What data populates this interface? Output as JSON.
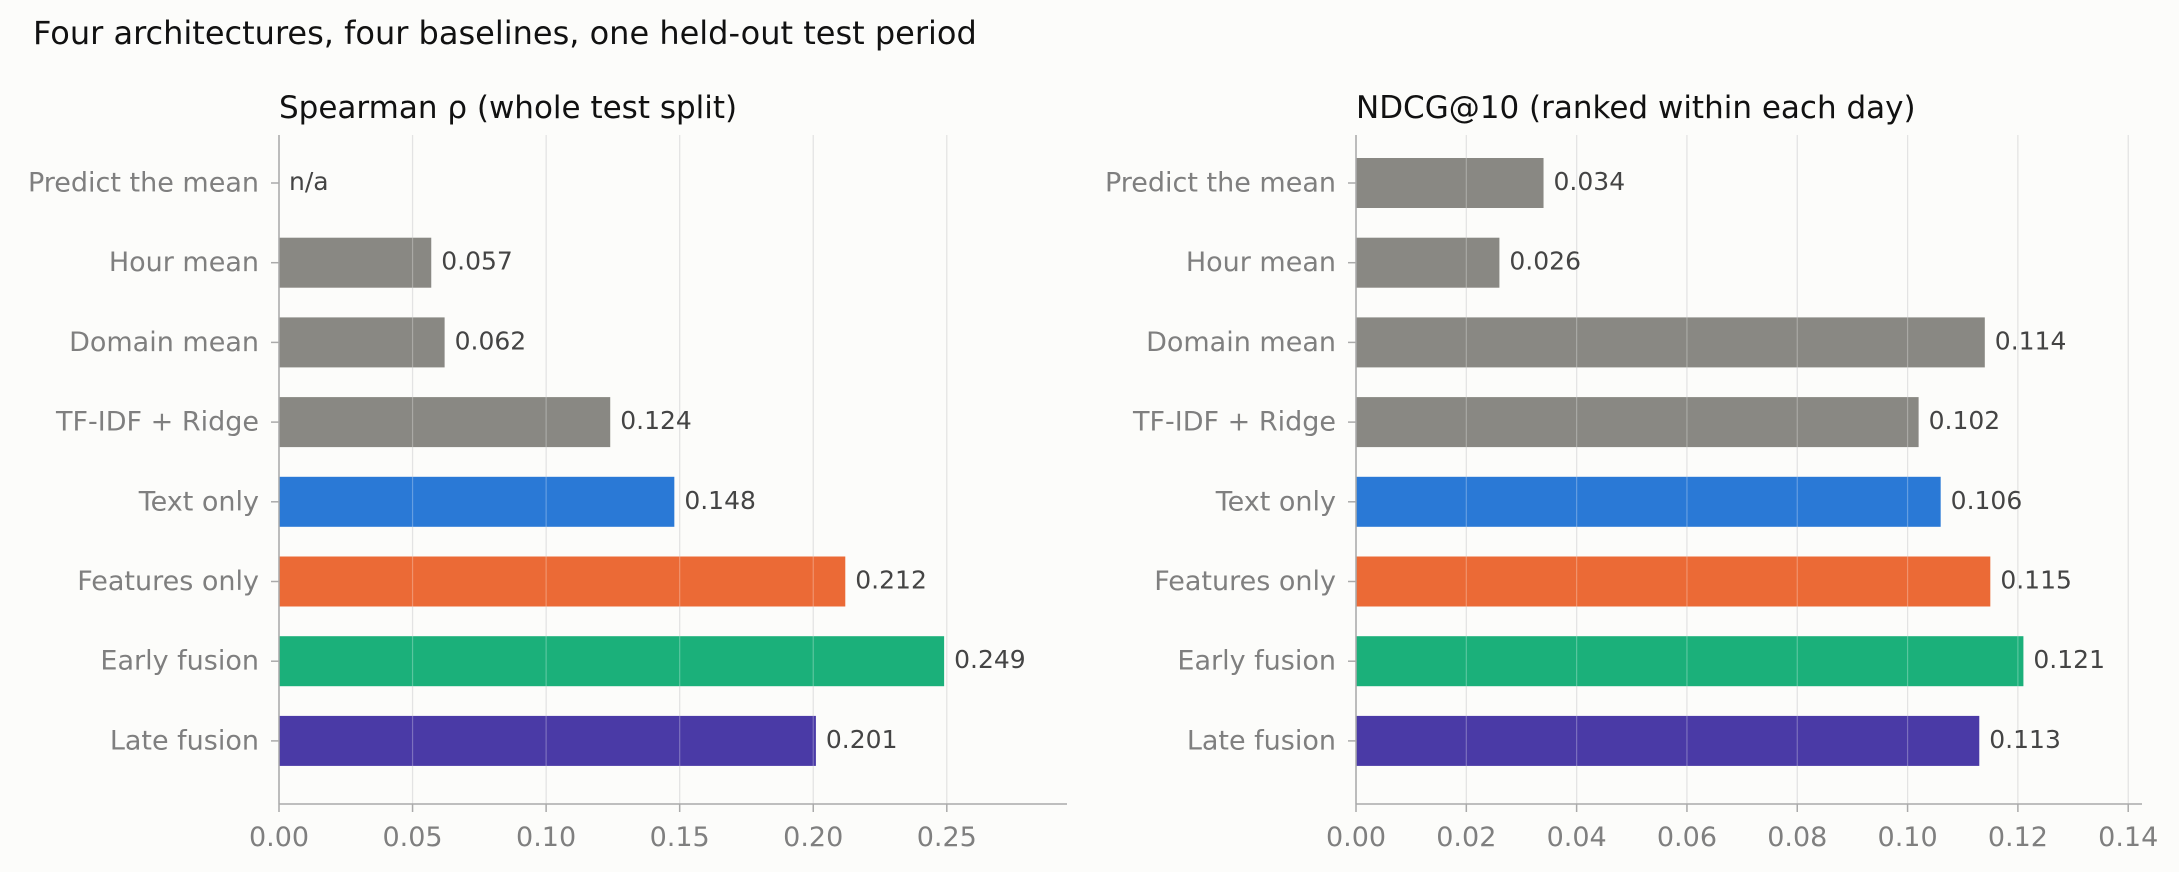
{
  "figure": {
    "title": "Four architectures, four baselines, one held-out test period"
  },
  "colors": {
    "baseline": "#898883",
    "text_only": "#2a79d6",
    "features_only": "#eb6a36",
    "early_fusion": "#1bb07a",
    "late_fusion": "#4a3aa6"
  },
  "chart_data": [
    {
      "type": "bar",
      "orientation": "horizontal",
      "title": "Spearman ρ (whole test split)",
      "xlabel": "",
      "ylabel": "",
      "categories": [
        "Predict the mean",
        "Hour mean",
        "Domain mean",
        "TF-IDF + Ridge",
        "Text only",
        "Features only",
        "Early fusion",
        "Late fusion"
      ],
      "values": [
        null,
        0.057,
        0.062,
        0.124,
        0.148,
        0.212,
        0.249,
        0.201
      ],
      "value_labels": [
        "n/a",
        "0.057",
        "0.062",
        "0.124",
        "0.148",
        "0.212",
        "0.249",
        "0.201"
      ],
      "bar_colors": [
        "#898883",
        "#898883",
        "#898883",
        "#898883",
        "#2a79d6",
        "#eb6a36",
        "#1bb07a",
        "#4a3aa6"
      ],
      "xlim": [
        0,
        0.295
      ],
      "xticks": [
        0,
        0.05,
        0.1,
        0.15,
        0.2,
        0.25
      ],
      "xtick_labels": [
        "0.00",
        "0.05",
        "0.10",
        "0.15",
        "0.20",
        "0.25"
      ],
      "grid": "x"
    },
    {
      "type": "bar",
      "orientation": "horizontal",
      "title": "NDCG@10 (ranked within each day)",
      "xlabel": "",
      "ylabel": "",
      "categories": [
        "Predict the mean",
        "Hour mean",
        "Domain mean",
        "TF-IDF + Ridge",
        "Text only",
        "Features only",
        "Early fusion",
        "Late fusion"
      ],
      "values": [
        0.034,
        0.026,
        0.114,
        0.102,
        0.106,
        0.115,
        0.121,
        0.113
      ],
      "value_labels": [
        "0.034",
        "0.026",
        "0.114",
        "0.102",
        "0.106",
        "0.115",
        "0.121",
        "0.113"
      ],
      "bar_colors": [
        "#898883",
        "#898883",
        "#898883",
        "#898883",
        "#2a79d6",
        "#eb6a36",
        "#1bb07a",
        "#4a3aa6"
      ],
      "xlim": [
        0,
        0.1425
      ],
      "xticks": [
        0,
        0.02,
        0.04,
        0.06,
        0.08,
        0.1,
        0.12,
        0.14
      ],
      "xtick_labels": [
        "0.00",
        "0.02",
        "0.04",
        "0.06",
        "0.08",
        "0.10",
        "0.12",
        "0.14"
      ],
      "grid": "x"
    }
  ]
}
